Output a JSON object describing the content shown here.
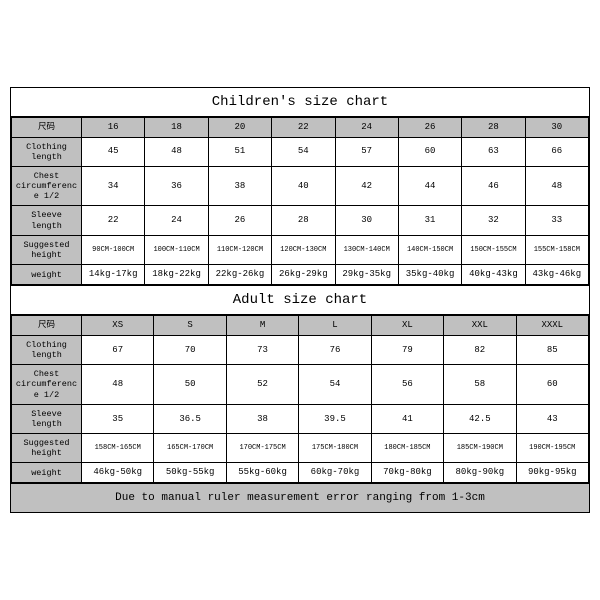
{
  "colors": {
    "header_bg": "#c0c0c0",
    "data_bg": "#ffffff",
    "border": "#000000"
  },
  "children": {
    "title": "Children's size chart",
    "row_label_header": "尺码",
    "sizes": [
      "16",
      "18",
      "20",
      "22",
      "24",
      "26",
      "28",
      "30"
    ],
    "rows": [
      {
        "label": "Clothing length",
        "vals": [
          "45",
          "48",
          "51",
          "54",
          "57",
          "60",
          "63",
          "66"
        ]
      },
      {
        "label": "Chest circumference 1/2",
        "vals": [
          "34",
          "36",
          "38",
          "40",
          "42",
          "44",
          "46",
          "48"
        ]
      },
      {
        "label": "Sleeve length",
        "vals": [
          "22",
          "24",
          "26",
          "28",
          "30",
          "31",
          "32",
          "33"
        ]
      },
      {
        "label": "Suggested height",
        "vals": [
          "90CM-100CM",
          "100CM-110CM",
          "110CM-120CM",
          "120CM-130CM",
          "130CM-140CM",
          "140CM-150CM",
          "150CM-155CM",
          "155CM-158CM"
        ],
        "tiny": true
      },
      {
        "label": "weight",
        "vals": [
          "14kg-17kg",
          "18kg-22kg",
          "22kg-26kg",
          "26kg-29kg",
          "29kg-35kg",
          "35kg-40kg",
          "40kg-43kg",
          "43kg-46kg"
        ]
      }
    ]
  },
  "adult": {
    "title": "Adult size chart",
    "row_label_header": "尺码",
    "sizes": [
      "XS",
      "S",
      "M",
      "L",
      "XL",
      "XXL",
      "XXXL"
    ],
    "rows": [
      {
        "label": "Clothing length",
        "vals": [
          "67",
          "70",
          "73",
          "76",
          "79",
          "82",
          "85"
        ]
      },
      {
        "label": "Chest circumference 1/2",
        "vals": [
          "48",
          "50",
          "52",
          "54",
          "56",
          "58",
          "60"
        ]
      },
      {
        "label": "Sleeve length",
        "vals": [
          "35",
          "36.5",
          "38",
          "39.5",
          "41",
          "42.5",
          "43"
        ]
      },
      {
        "label": "Suggested height",
        "vals": [
          "158CM-165CM",
          "165CM-170CM",
          "170CM-175CM",
          "175CM-180CM",
          "180CM-185CM",
          "185CM-190CM",
          "190CM-195CM"
        ],
        "tiny": true
      },
      {
        "label": "weight",
        "vals": [
          "46kg-50kg",
          "50kg-55kg",
          "55kg-60kg",
          "60kg-70kg",
          "70kg-80kg",
          "80kg-90kg",
          "90kg-95kg"
        ]
      }
    ]
  },
  "footer": "Due to manual ruler measurement error ranging from 1-3cm"
}
